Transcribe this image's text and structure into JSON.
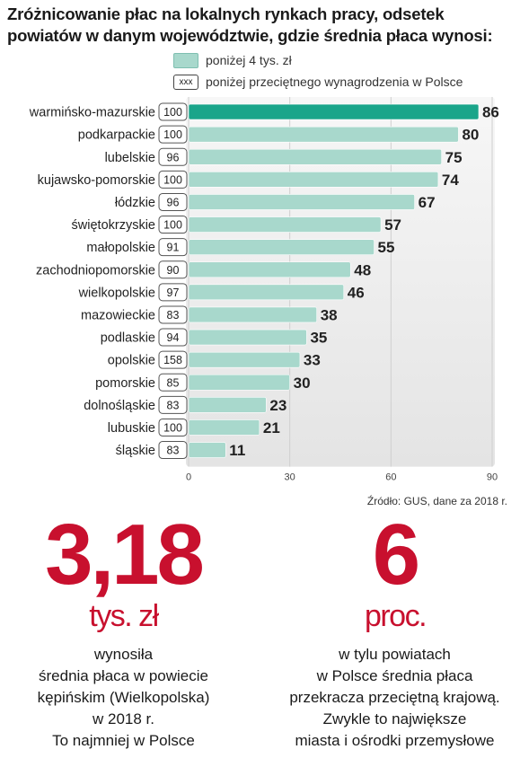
{
  "title_lines": [
    "Zróżnicowanie płac na lokalnych rynkach pracy, odsetek",
    "powiatów w danym województwie, gdzie średnia płaca wynosi:"
  ],
  "legend": {
    "bar": "poniżej 4 tys. zł",
    "box_sample": "xxx",
    "box": "poniżej przeciętnego wynagrodzenia w Polsce"
  },
  "colors": {
    "bar": "#a8d8cc",
    "bar_highlight": "#1aa58a",
    "accent": "#c8102e"
  },
  "chart_data": {
    "type": "bar",
    "orientation": "horizontal",
    "categories": [
      "warmińsko-mazurskie",
      "podkarpackie",
      "lubelskie",
      "kujawsko-pomorskie",
      "łódzkie",
      "świętokrzyskie",
      "małopolskie",
      "zachodniopomorskie",
      "wielkopolskie",
      "mazowieckie",
      "podlaskie",
      "opolskie",
      "pomorskie",
      "dolnośląskie",
      "lubuskie",
      "śląskie"
    ],
    "values": [
      86,
      80,
      75,
      74,
      67,
      57,
      55,
      48,
      46,
      38,
      35,
      33,
      30,
      23,
      21,
      11
    ],
    "box_values": [
      "100",
      "100",
      "96",
      "100",
      "96",
      "100",
      "91",
      "90",
      "97",
      "83",
      "94",
      "158",
      "85",
      "83",
      "100",
      "83"
    ],
    "xlim": [
      0,
      90
    ],
    "xticks": [
      0,
      30,
      60,
      90
    ],
    "xtick_labels": [
      "0",
      "30",
      "60",
      "90"
    ],
    "highlight_index": 0
  },
  "source": "Źródło: GUS, dane za 2018 r.",
  "stat1": {
    "number": "3,18",
    "unit": "tys. zł",
    "lines": [
      "wynosiła",
      "średnia płaca w powiecie",
      "kępińskim (Wielkopolska)",
      "w 2018 r.",
      "To najmniej w Polsce"
    ]
  },
  "stat2": {
    "number": "6",
    "unit": "proc.",
    "lines": [
      "w tylu powiatach",
      "w Polsce średnia płaca",
      "przekracza przeciętną krajową.",
      "Zwykle to największe",
      "miasta i ośrodki przemysłowe"
    ]
  }
}
